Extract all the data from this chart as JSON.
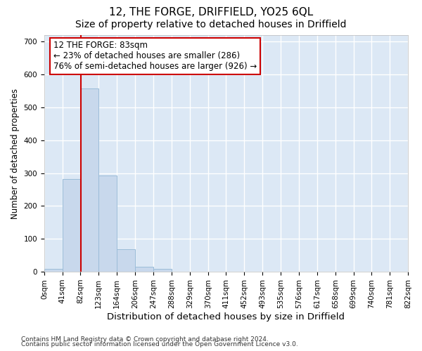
{
  "title": "12, THE FORGE, DRIFFIELD, YO25 6QL",
  "subtitle": "Size of property relative to detached houses in Driffield",
  "xlabel": "Distribution of detached houses by size in Driffield",
  "ylabel": "Number of detached properties",
  "footnote1": "Contains HM Land Registry data © Crown copyright and database right 2024.",
  "footnote2": "Contains public sector information licensed under the Open Government Licence v3.0.",
  "bar_edges": [
    0,
    41,
    82,
    123,
    164,
    206,
    247,
    288,
    329,
    370,
    411,
    452,
    493,
    535,
    576,
    617,
    658,
    699,
    740,
    781,
    822
  ],
  "bar_heights": [
    8,
    282,
    558,
    292,
    68,
    15,
    9,
    0,
    0,
    0,
    0,
    0,
    0,
    0,
    0,
    0,
    0,
    0,
    0,
    0
  ],
  "bar_color": "#c8d8ec",
  "bar_edge_color": "#9bbcd8",
  "property_value": 83,
  "vline_color": "#cc0000",
  "annotation_line1": "12 THE FORGE: 83sqm",
  "annotation_line2": "← 23% of detached houses are smaller (286)",
  "annotation_line3": "76% of semi-detached houses are larger (926) →",
  "annotation_box_color": "#ffffff",
  "annotation_box_edge": "#cc0000",
  "ylim": [
    0,
    720
  ],
  "yticks": [
    0,
    100,
    200,
    300,
    400,
    500,
    600,
    700
  ],
  "tick_labels": [
    "0sqm",
    "41sqm",
    "82sqm",
    "123sqm",
    "164sqm",
    "206sqm",
    "247sqm",
    "288sqm",
    "329sqm",
    "370sqm",
    "411sqm",
    "452sqm",
    "493sqm",
    "535sqm",
    "576sqm",
    "617sqm",
    "658sqm",
    "699sqm",
    "740sqm",
    "781sqm",
    "822sqm"
  ],
  "bg_color": "#ffffff",
  "plot_bg_color": "#dce8f5",
  "grid_color": "#ffffff",
  "title_fontsize": 11,
  "subtitle_fontsize": 10,
  "xlabel_fontsize": 9.5,
  "ylabel_fontsize": 8.5,
  "tick_fontsize": 7.5,
  "annot_fontsize": 8.5,
  "footnote_fontsize": 6.5
}
